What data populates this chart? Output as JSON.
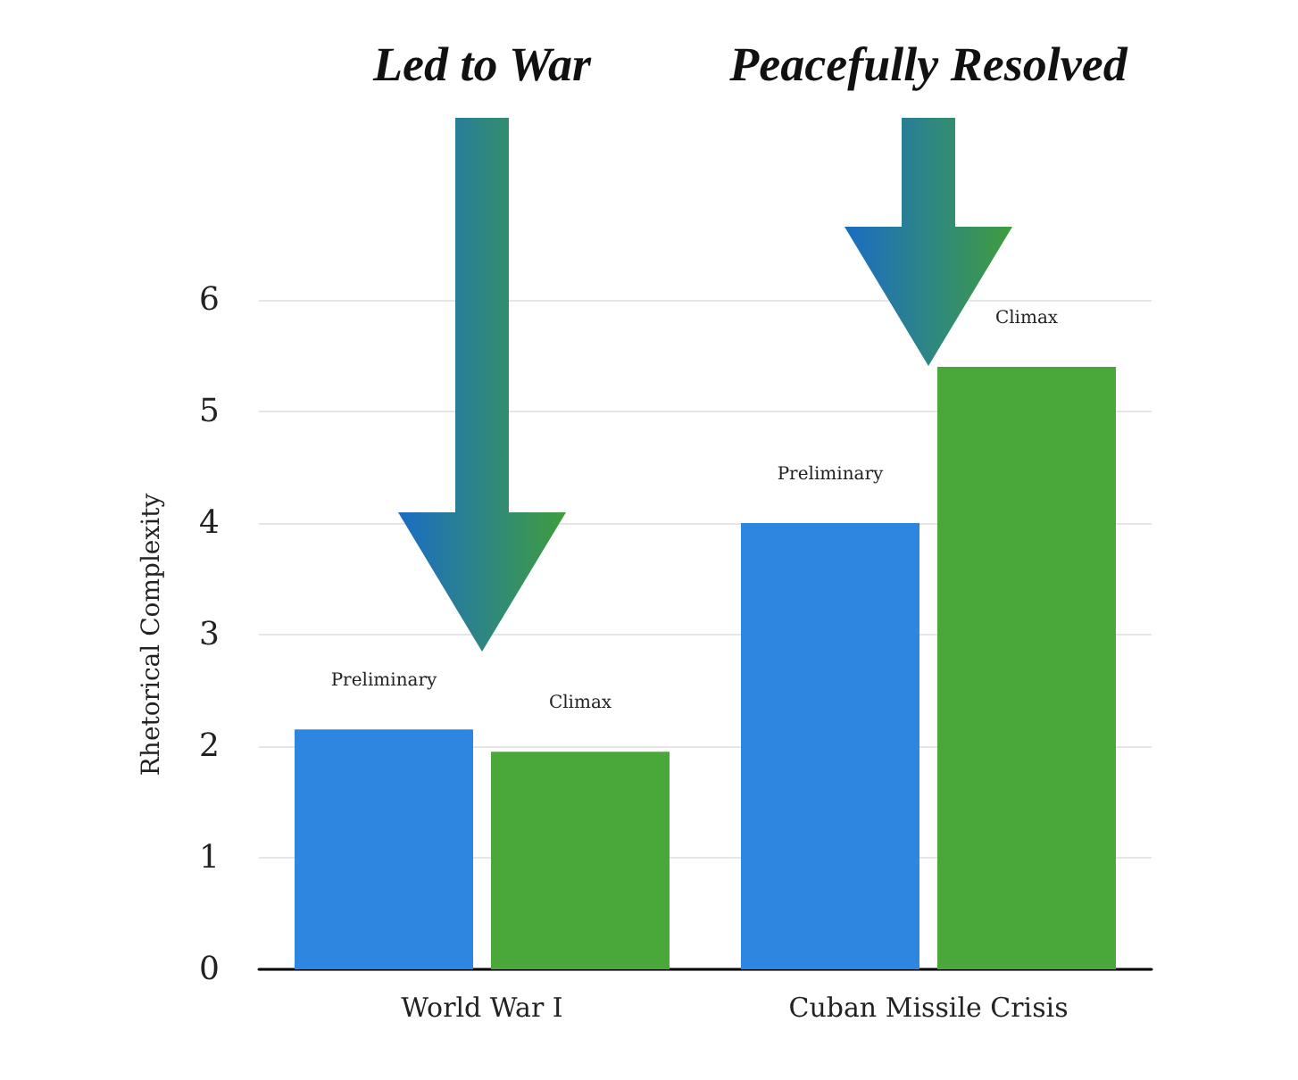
{
  "chart_data": {
    "type": "bar",
    "ylabel": "Rhetorical Complexity",
    "categories": [
      "World War I",
      "Cuban Missile Crisis"
    ],
    "series": [
      {
        "name": "Preliminary",
        "color": "#2f86e0",
        "values": [
          2.15,
          4.0
        ]
      },
      {
        "name": "Climax",
        "color": "#4aa73a",
        "values": [
          1.95,
          5.4
        ]
      }
    ],
    "ylim": [
      0,
      6
    ],
    "yticks": [
      0,
      1,
      2,
      3,
      4,
      5,
      6
    ],
    "grid": "y",
    "legend": false,
    "annotations": [
      "Led to War",
      "Peacefully Resolved"
    ]
  }
}
